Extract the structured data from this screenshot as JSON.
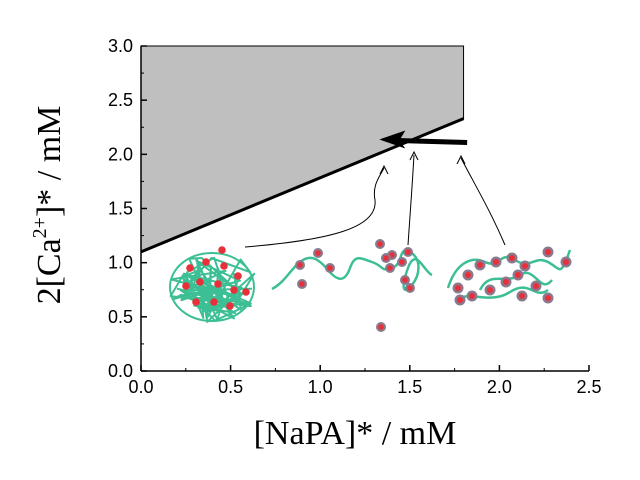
{
  "chart_data": {
    "type": "area",
    "xlabel": "[NaPA]* / mM",
    "ylabel": "2[Ca2+]* / mM",
    "ylabel_parts": {
      "prefix": "2[Ca",
      "superscript": "2+",
      "suffix": "]* / mM"
    },
    "xlim": [
      0.0,
      2.5
    ],
    "ylim": [
      0.0,
      3.0
    ],
    "x_ticks": [
      "0.0",
      "0.5",
      "1.0",
      "1.5",
      "2.0",
      "2.5"
    ],
    "y_ticks": [
      "0.0",
      "0.5",
      "1.0",
      "1.5",
      "2.0",
      "2.5",
      "3.0"
    ],
    "grid": false,
    "boundary_line": {
      "x": [
        0.0,
        1.8
      ],
      "y": [
        1.1,
        2.33
      ]
    },
    "shaded_region": {
      "x": [
        0.0,
        1.8,
        1.8,
        0.0
      ],
      "y": [
        1.1,
        2.33,
        3.0,
        3.0
      ]
    },
    "arrow": {
      "from": [
        1.82,
        2.1
      ],
      "to": [
        1.33,
        2.1
      ]
    },
    "colors": {
      "shade": "#bfbfbf",
      "chain": "#3dbf95",
      "bead": "#e8303a",
      "bead_outline": "#8a7a8f"
    }
  }
}
